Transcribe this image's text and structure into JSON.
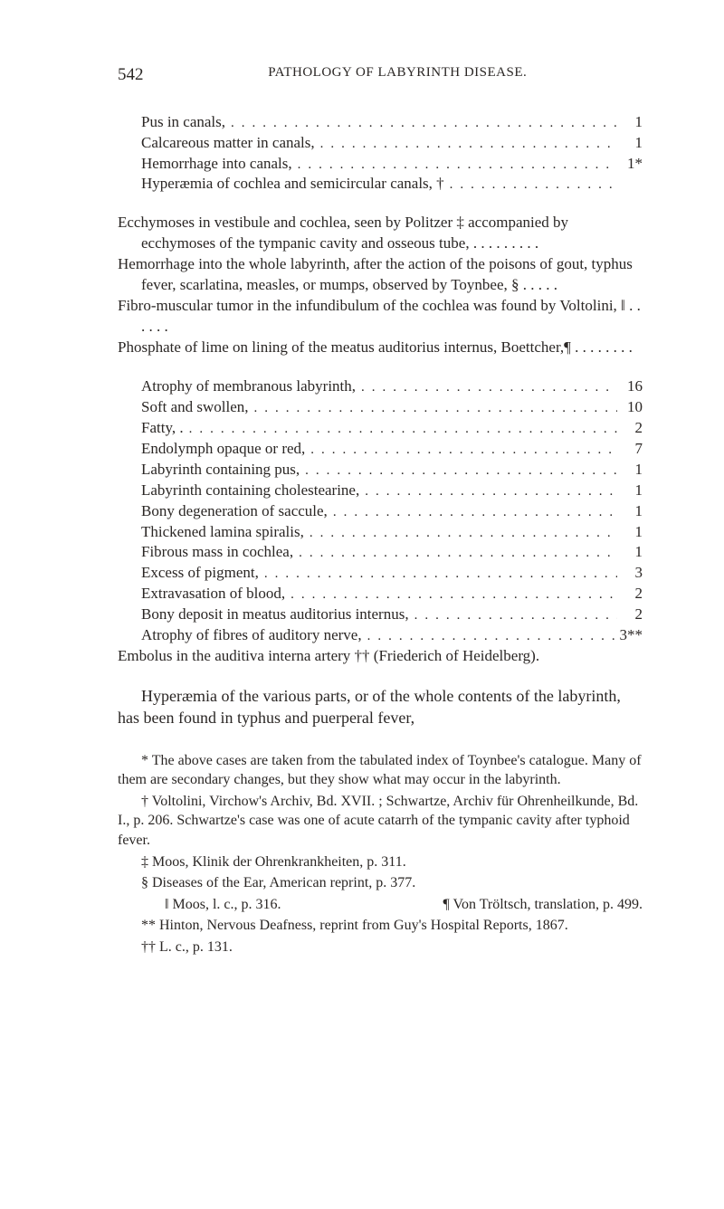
{
  "page_number": "542",
  "running_title": "PATHOLOGY OF LABYRINTH DISEASE.",
  "list1": [
    {
      "label": "Pus in canals,",
      "value": "1"
    },
    {
      "label": "Calcareous matter in canals,",
      "value": "1"
    },
    {
      "label": "Hemorrhage into canals,",
      "value": "1*"
    },
    {
      "label": "Hyperæmia of cochlea and semicircular canals, †",
      "value": ""
    }
  ],
  "block2": [
    "Ecchymoses in vestibule and cochlea, seen by Politzer ‡ accompanied by ecchymoses of the tympanic cavity and osseous tube, . . . . . . . . .",
    "Hemorrhage into the whole labyrinth, after the action of the poisons of gout, typhus fever, scarlatina, measles, or mumps, observed by Toynbee, § . . . . .",
    "Fibro-muscular tumor in the infundibulum of the cochlea was found by Voltolini, ‖  . . . . . .",
    "Phosphate of lime on lining of the meatus auditorius internus, Boettcher,¶ . . . . . . . ."
  ],
  "list3": [
    {
      "label": "Atrophy of membranous labyrinth,",
      "value": "16"
    },
    {
      "label": "Soft and swollen,",
      "value": "10"
    },
    {
      "label": "Fatty, .",
      "value": "2"
    },
    {
      "label": "Endolymph opaque or red,",
      "value": "7"
    },
    {
      "label": "Labyrinth containing pus,",
      "value": "1"
    },
    {
      "label": "Labyrinth containing cholestearine,",
      "value": "1"
    },
    {
      "label": "Bony degeneration of saccule,",
      "value": "1"
    },
    {
      "label": "Thickened lamina spiralis,",
      "value": "1"
    },
    {
      "label": "Fibrous mass in cochlea,",
      "value": "1"
    },
    {
      "label": "Excess of pigment,",
      "value": "3"
    },
    {
      "label": "Extravasation of blood,",
      "value": "2"
    },
    {
      "label": "Bony deposit in meatus auditorius internus,",
      "value": "2"
    },
    {
      "label": "Atrophy of fibres of auditory nerve,",
      "value": "3**"
    }
  ],
  "list3_tail": "Embolus in the auditiva interna artery †† (Friederich of Heidelberg).",
  "body_para": "Hyperæmia of the various parts, or of the whole contents of the labyrinth, has been found in typhus and puerperal fever,",
  "footnotes": {
    "star": "* The above cases are taken from the tabulated index of Toynbee's catalogue. Many of them are secondary changes, but they show what may occur in the labyrinth.",
    "dagger": "† Voltolini, Virchow's Archiv, Bd. XVII. ; Schwartze, Archiv für Ohrenheilkunde, Bd. I., p. 206. Schwartze's case was one of acute catarrh of the tympanic cavity after typhoid fever.",
    "ddagger": "‡ Moos, Klinik der Ohrenkrankheiten, p. 311.",
    "section": "§ Diseases of the Ear, American reprint, p. 377.",
    "bar_left": "‖ Moos, l. c., p. 316.",
    "bar_right": "¶ Von Tröltsch, translation, p. 499.",
    "dstar": "** Hinton, Nervous Deafness, reprint from Guy's Hospital Reports, 1867.",
    "ddagger2": "†† L. c., p. 131."
  },
  "dots_fill": ".................................................."
}
